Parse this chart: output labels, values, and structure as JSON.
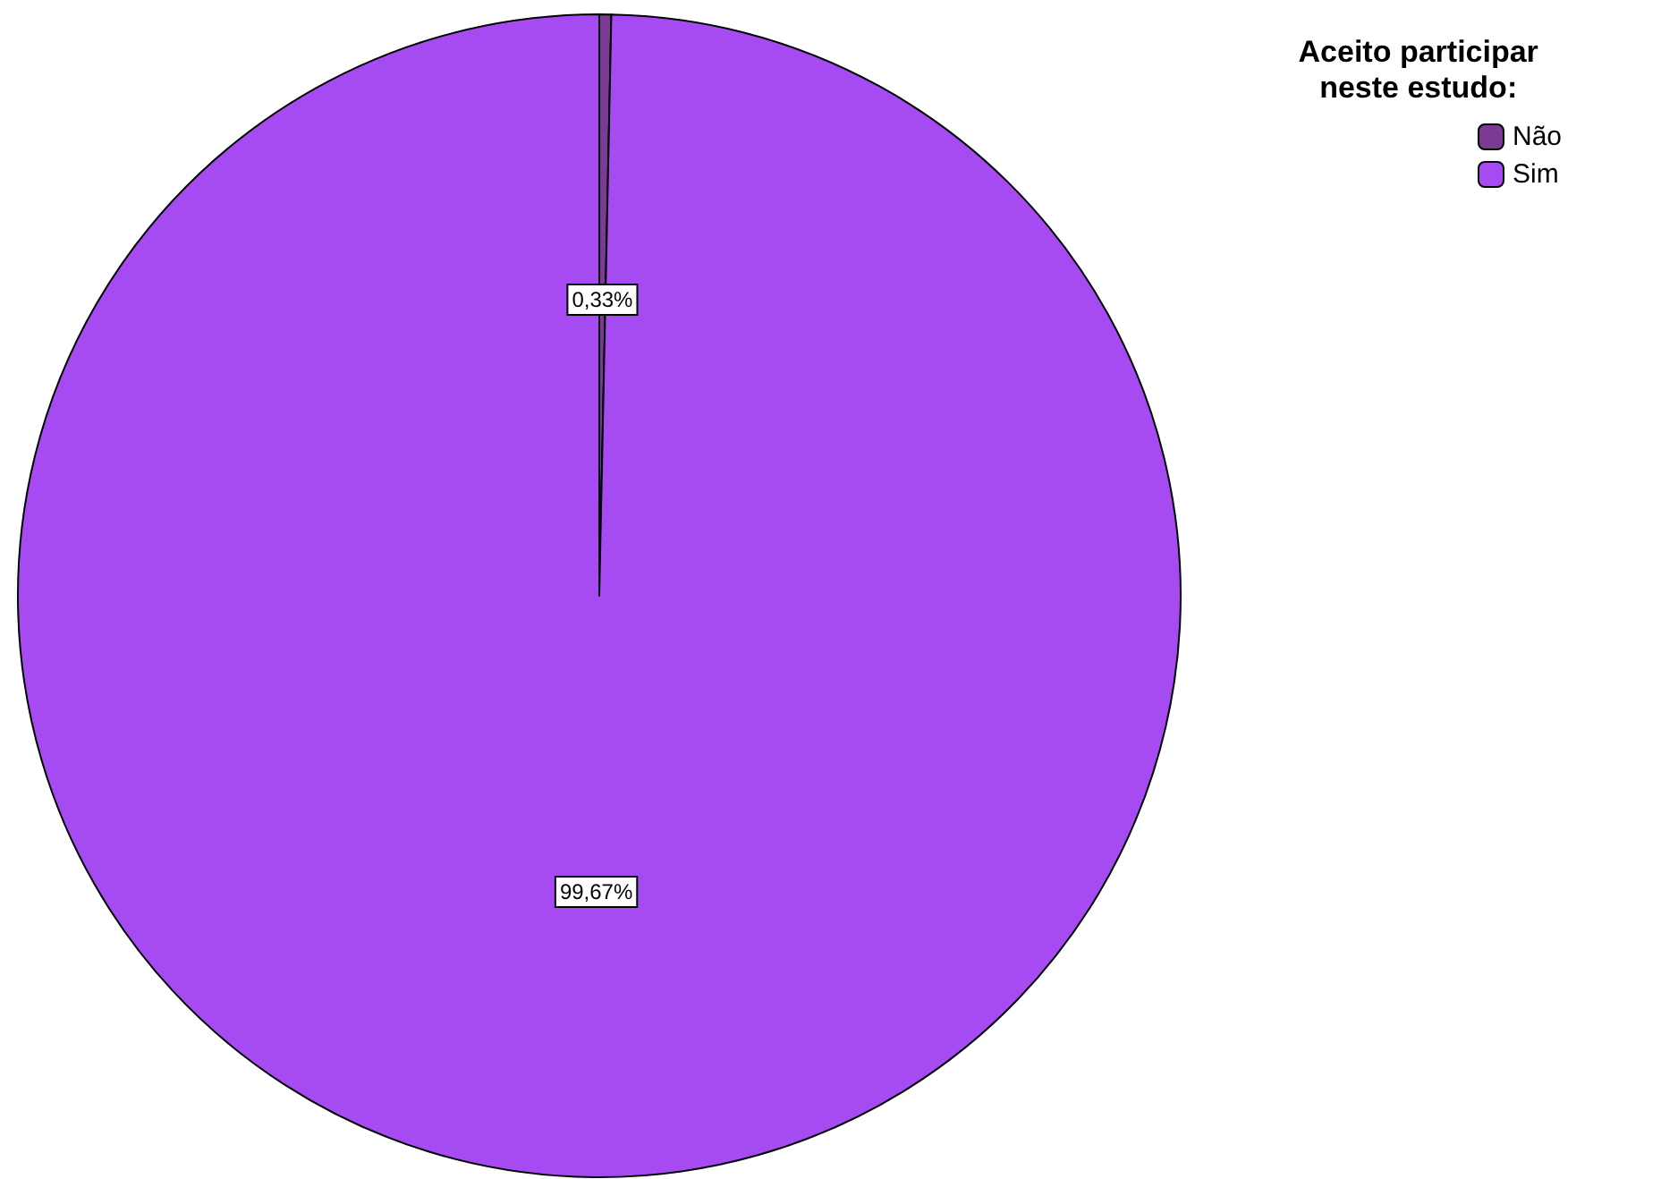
{
  "chart_data": {
    "type": "pie",
    "legend_title": "Aceito participar\nneste estudo:",
    "categories": [
      "Não",
      "Sim"
    ],
    "values": [
      0.33,
      99.67
    ],
    "colors": [
      "#7b3a94",
      "#a64bf2"
    ],
    "value_labels": [
      "0,33%",
      "99,67%"
    ],
    "legend": "top right"
  }
}
